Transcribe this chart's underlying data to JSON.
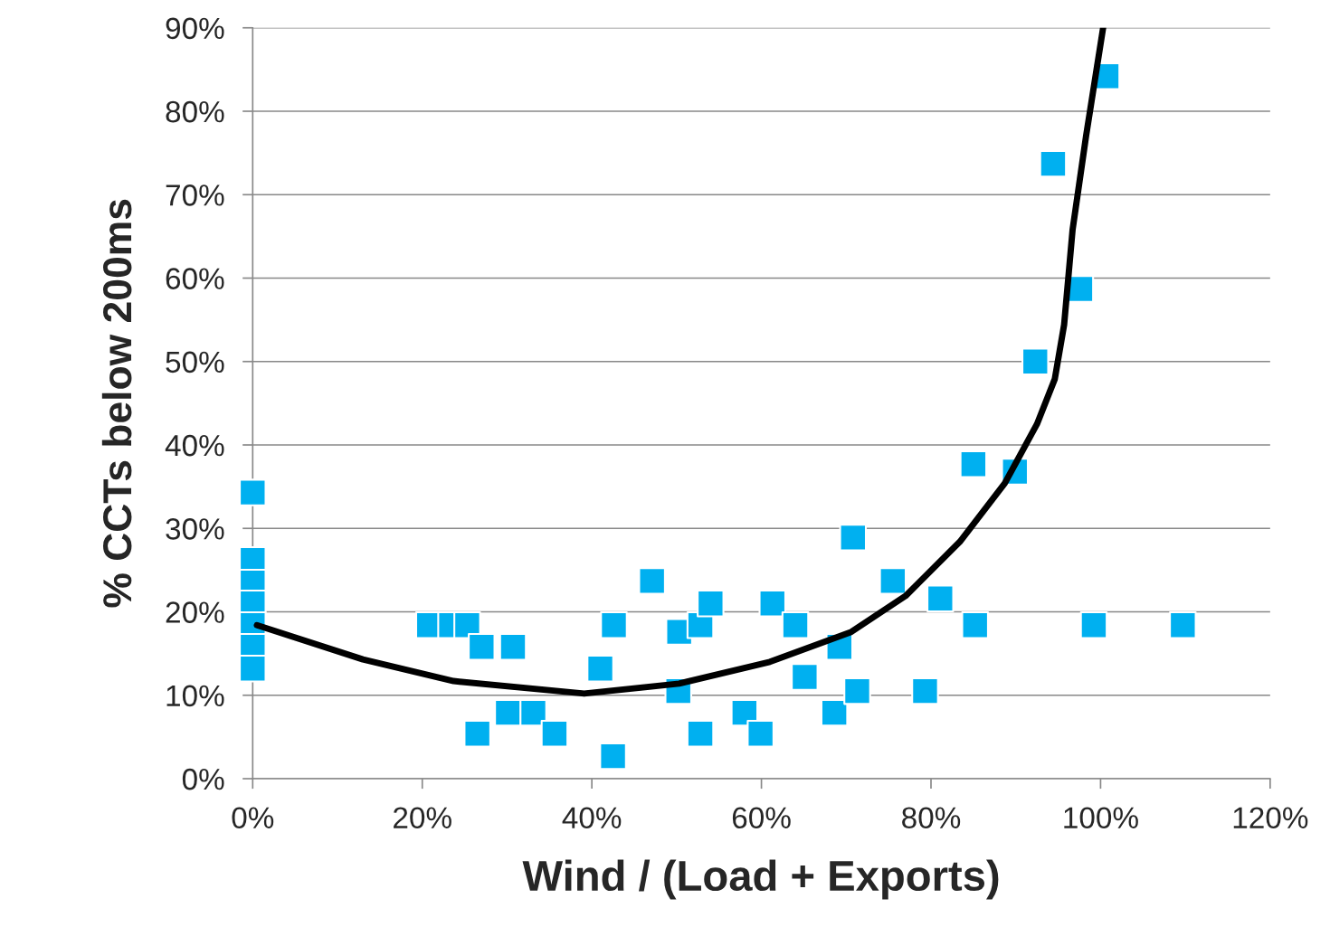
{
  "chart_data": {
    "type": "scatter",
    "xlabel": "Wind / (Load + Exports)",
    "ylabel": "% CCTs below 200ms",
    "xlim": [
      0,
      120
    ],
    "ylim": [
      0,
      90
    ],
    "xticks": [
      {
        "value": 0,
        "label": "0%"
      },
      {
        "value": 20,
        "label": "20%"
      },
      {
        "value": 40,
        "label": "40%"
      },
      {
        "value": 60,
        "label": "60%"
      },
      {
        "value": 80,
        "label": "80%"
      },
      {
        "value": 100,
        "label": "100%"
      },
      {
        "value": 120,
        "label": "120%"
      }
    ],
    "yticks": [
      {
        "value": 0,
        "label": "0%"
      },
      {
        "value": 10,
        "label": "10%"
      },
      {
        "value": 20,
        "label": "20%"
      },
      {
        "value": 30,
        "label": "30%"
      },
      {
        "value": 40,
        "label": "40%"
      },
      {
        "value": 50,
        "label": "50%"
      },
      {
        "value": 60,
        "label": "60%"
      },
      {
        "value": 70,
        "label": "70%"
      },
      {
        "value": 80,
        "label": "80%"
      },
      {
        "value": 90,
        "label": "90%"
      }
    ],
    "grid": "y",
    "series": [
      {
        "marker": "square",
        "color": "#00b0f0",
        "x": [
          0,
          0,
          0,
          0,
          0,
          0,
          0,
          20.8,
          23.4,
          25.3,
          27,
          30.7,
          26.5,
          30.1,
          33.1,
          35.6,
          41,
          42.6,
          42.5,
          47.1,
          50.3,
          50.2,
          52.8,
          54,
          52.8,
          58,
          59.9,
          61.3,
          64,
          65.1,
          68.6,
          69.2,
          70.8,
          71.3,
          75.5,
          79.3,
          81.1,
          85,
          85.2,
          89.9,
          92.3,
          94.4,
          97.6,
          99.2,
          100.7,
          109.7
        ],
        "values": [
          34.3,
          26.2,
          23.5,
          21,
          18.4,
          15.8,
          13.2,
          18.4,
          18.4,
          18.4,
          15.8,
          15.8,
          5.4,
          7.9,
          7.9,
          5.4,
          13.2,
          18.4,
          2.7,
          23.7,
          17.6,
          10.5,
          18.4,
          21,
          5.4,
          7.9,
          5.4,
          21,
          18.4,
          12.2,
          7.9,
          15.8,
          28.9,
          10.5,
          23.7,
          10.5,
          21.6,
          37.7,
          18.4,
          36.8,
          50,
          73.7,
          58.7,
          18.4,
          84.2,
          18.4
        ]
      },
      {
        "type": "line",
        "color": "#000000",
        "line_style": "solid",
        "x": [
          0.5,
          13,
          23.7,
          39.1,
          50.3,
          61,
          70.6,
          77,
          83.4,
          88.7,
          92.5,
          94.6,
          95.7,
          96.7,
          98.3,
          100.3
        ],
        "values": [
          18.4,
          14.3,
          11.7,
          10.2,
          11.4,
          14,
          17.6,
          21.9,
          28.4,
          35.4,
          42.5,
          47.9,
          54.4,
          65.8,
          77.1,
          90
        ]
      }
    ]
  }
}
